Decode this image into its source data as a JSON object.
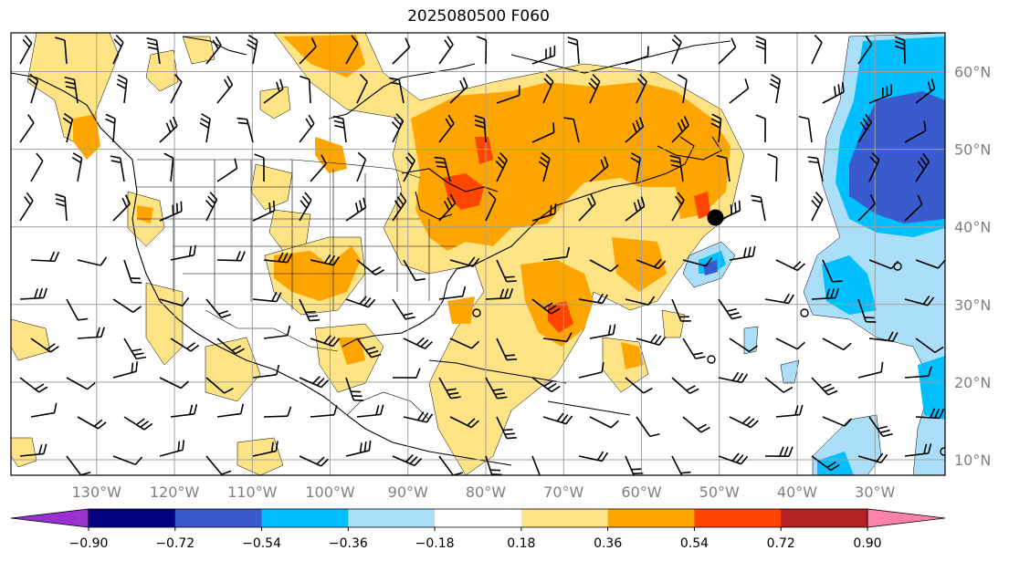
{
  "title": "2025080500 F060",
  "map": {
    "lon_range": [
      -141,
      -21
    ],
    "lat_range": [
      8,
      65
    ],
    "lon_labels": [
      {
        "lon": -130,
        "text": "130°W"
      },
      {
        "lon": -120,
        "text": "120°W"
      },
      {
        "lon": -110,
        "text": "110°W"
      },
      {
        "lon": -100,
        "text": "100°W"
      },
      {
        "lon": -90,
        "text": "90°W"
      },
      {
        "lon": -80,
        "text": "80°W"
      },
      {
        "lon": -70,
        "text": "70°W"
      },
      {
        "lon": -60,
        "text": "60°W"
      },
      {
        "lon": -50,
        "text": "50°W"
      },
      {
        "lon": -40,
        "text": "40°W"
      },
      {
        "lon": -30,
        "text": "30°W"
      }
    ],
    "lat_labels": [
      {
        "lat": 60,
        "text": "60°N"
      },
      {
        "lat": 50,
        "text": "50°N"
      },
      {
        "lat": 40,
        "text": "40°N"
      },
      {
        "lat": 30,
        "text": "30°N"
      },
      {
        "lat": 20,
        "text": "20°N"
      },
      {
        "lat": 10,
        "text": "10°N"
      }
    ],
    "grid": true,
    "marker": {
      "lon": -50.5,
      "lat": 41.2
    }
  },
  "colorbar": {
    "ticks": [
      "−0.90",
      "−0.72",
      "−0.54",
      "−0.36",
      "−0.18",
      "0.18",
      "0.36",
      "0.54",
      "0.72",
      "0.90"
    ],
    "colors": [
      "#9b30d0",
      "#000080",
      "#3a5bcd",
      "#00bfff",
      "#abdff9",
      "#ffffff",
      "#ffe485",
      "#ffa500",
      "#ff4500",
      "#b22222",
      "#ff82ab"
    ]
  },
  "colors": {
    "positive_1": "#ffe485",
    "positive_2": "#ffa500",
    "positive_3": "#ff4500",
    "negative_1": "#abdff9",
    "negative_2": "#00bfff",
    "negative_3": "#3a5bcd",
    "grid": "#a0a0a0"
  }
}
